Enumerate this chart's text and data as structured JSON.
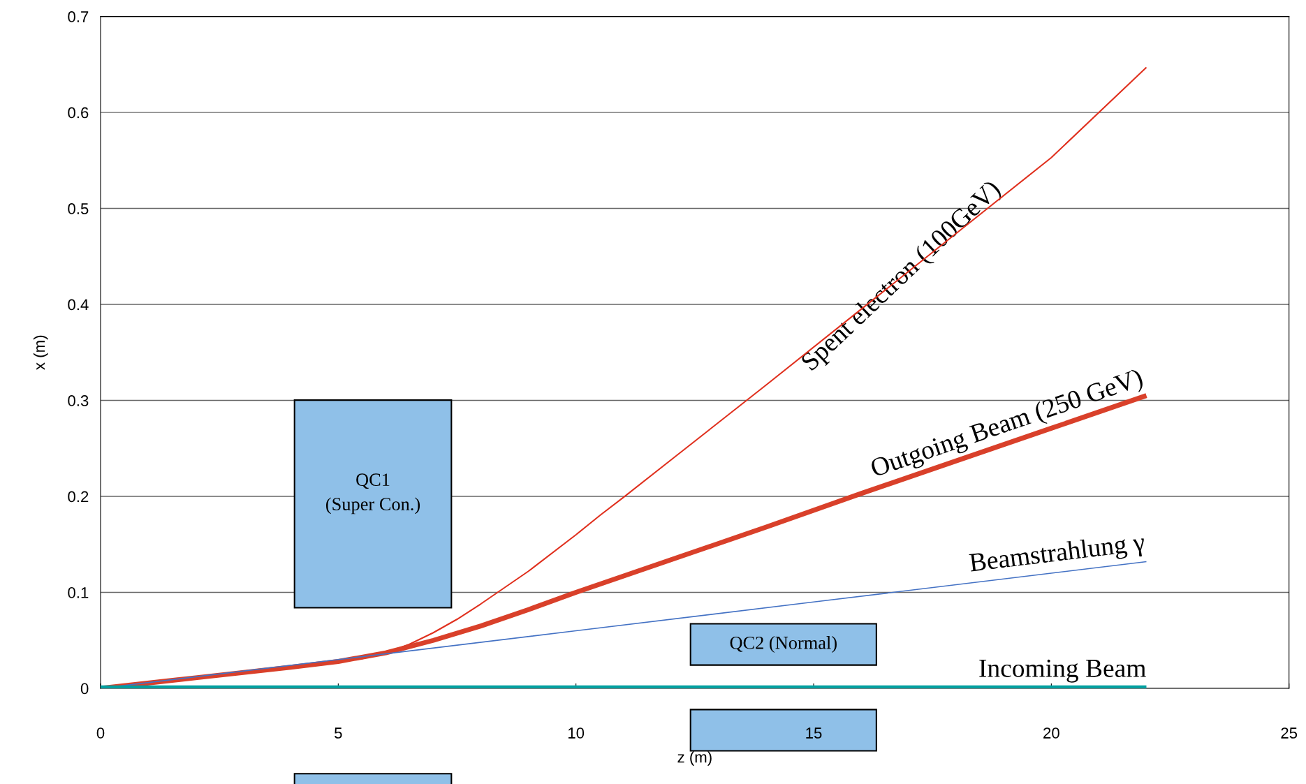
{
  "chart_data": {
    "type": "line",
    "xlabel": "z (m)",
    "ylabel": "x (m)",
    "xlim": [
      0,
      25
    ],
    "xticks": [
      0,
      5,
      10,
      15,
      20,
      25
    ],
    "ylim": [
      0,
      0.7
    ],
    "yticks": [
      0,
      0.1,
      0.2,
      0.3,
      0.4,
      0.5,
      0.6,
      0.7
    ],
    "grid": "y",
    "line_style": "solid",
    "marker": "none",
    "series": [
      {
        "name": "Spent electron (100GeV)",
        "color": "#e0301e",
        "x": [
          0,
          2,
          4,
          5,
          5.5,
          6,
          6.5,
          7,
          7.5,
          8,
          9,
          10,
          10.5,
          11,
          12,
          14,
          16,
          18,
          20,
          22
        ],
        "values": [
          0,
          0.011,
          0.022,
          0.028,
          0.031,
          0.037,
          0.046,
          0.058,
          0.072,
          0.088,
          0.122,
          0.16,
          0.18,
          0.199,
          0.238,
          0.316,
          0.395,
          0.474,
          0.553,
          0.647
        ]
      },
      {
        "name": "Outgoing Beam (250 GeV)",
        "color": "#d9402a",
        "x": [
          0,
          2,
          4,
          5,
          6,
          7,
          8,
          9,
          10,
          12,
          14,
          16,
          18,
          20,
          22
        ],
        "values": [
          0,
          0.011,
          0.022,
          0.028,
          0.037,
          0.05,
          0.065,
          0.082,
          0.1,
          0.134,
          0.168,
          0.203,
          0.237,
          0.271,
          0.305
        ]
      },
      {
        "name": "Beamstrahlung γ",
        "color": "#4472c4",
        "x": [
          0,
          5,
          10,
          15,
          20,
          22
        ],
        "values": [
          0,
          0.03,
          0.06,
          0.09,
          0.12,
          0.132
        ]
      },
      {
        "name": "Incoming Beam",
        "color": "#00a0a0",
        "x": [
          0,
          22
        ],
        "values": [
          0,
          0
        ]
      }
    ],
    "annotations": [
      "QC1\n(Super Con.)",
      "QC2 (Normal)"
    ]
  }
}
